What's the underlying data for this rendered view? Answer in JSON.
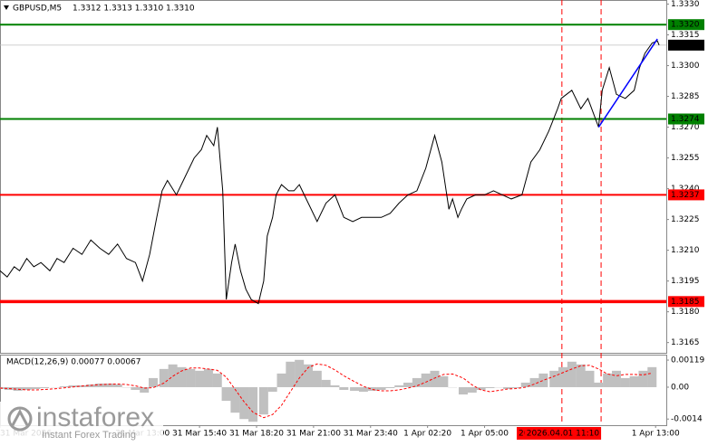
{
  "chart_data": {
    "type": "line",
    "title": "GBPUSD,M5",
    "subtitle": "1.3312 1.3313 1.3310 1.3310",
    "color": "#000000",
    "x": [
      380,
      400,
      420,
      435,
      455,
      475,
      495,
      520,
      540,
      560,
      585,
      610,
      635,
      660,
      685,
      710,
      735,
      760,
      780,
      800,
      820,
      835,
      850,
      875,
      900,
      925,
      945,
      960,
      980,
      990,
      1005,
      1015,
      1030,
      1040,
      1055,
      1070,
      1085,
      1105,
      1120,
      1130,
      1145,
      1155,
      1170,
      1190,
      1205,
      1220,
      1245,
      1270,
      1295,
      1320,
      1345,
      1370,
      1395,
      1420,
      1450,
      1475,
      1500,
      1525,
      1550,
      1575,
      1600,
      1620,
      1640,
      1650,
      1665,
      1675,
      1690,
      1715,
      1740,
      1765,
      1790,
      1815,
      1845,
      1870,
      1895,
      1920,
      1945,
      1955,
      1970,
      1985,
      2010,
      2030,
      2045,
      2060,
      2070,
      2090,
      2110,
      2135,
      2160,
      2175,
      2190,
      2210,
      2225,
      2230
    ],
    "values": [
      1.32,
      1.3197,
      1.3202,
      1.32,
      1.3206,
      1.3202,
      1.3204,
      1.32,
      1.3206,
      1.3204,
      1.3211,
      1.3208,
      1.3215,
      1.3211,
      1.3208,
      1.3213,
      1.3206,
      1.3204,
      1.3195,
      1.3208,
      1.3226,
      1.3239,
      1.3244,
      1.3237,
      1.3246,
      1.3255,
      1.3259,
      1.3266,
      1.3261,
      1.327,
      1.3239,
      1.3186,
      1.3204,
      1.3213,
      1.32,
      1.3191,
      1.3186,
      1.3184,
      1.3195,
      1.3217,
      1.3226,
      1.3237,
      1.3242,
      1.3239,
      1.3239,
      1.3242,
      1.3233,
      1.3224,
      1.3233,
      1.3237,
      1.3226,
      1.3224,
      1.3226,
      1.3226,
      1.3226,
      1.3228,
      1.3233,
      1.3237,
      1.3239,
      1.325,
      1.3266,
      1.3253,
      1.323,
      1.3235,
      1.3226,
      1.323,
      1.3235,
      1.3237,
      1.3237,
      1.3239,
      1.3237,
      1.3235,
      1.3237,
      1.3253,
      1.3259,
      1.3268,
      1.3279,
      1.3284,
      1.3286,
      1.3288,
      1.3279,
      1.3284,
      1.3277,
      1.327,
      1.3288,
      1.3299,
      1.3286,
      1.3284,
      1.3288,
      1.3299,
      1.3306,
      1.3311,
      1.3312,
      1.331
    ],
    "xlim": [
      380,
      2250
    ],
    "ylim": [
      1.316,
      1.3332
    ],
    "yticks": [
      {
        "value": 1.333,
        "label": "1.3330"
      },
      1.3315,
      {
        "value": 1.33,
        "label": "1.3300"
      },
      1.3285,
      {
        "value": 1.327,
        "label": "1.3270"
      },
      1.3255,
      {
        "value": 1.324,
        "label": "1.3240"
      },
      1.3225,
      {
        "value": 1.321,
        "label": "1.3210"
      },
      1.3195,
      {
        "value": 1.318,
        "label": "1.3180"
      },
      1.3165
    ],
    "xticks": [
      {
        "value": 380,
        "label": "31 Mar 2026"
      },
      {
        "value": 780,
        "label": "31 Mar 13:00"
      },
      {
        "value": 940,
        "label": "31 Mar 15:40"
      },
      {
        "value": 1100,
        "label": "31 Mar 18:20"
      },
      {
        "value": 1260,
        "label": "31 Mar 21:00"
      },
      {
        "value": 1420,
        "label": "31 Mar 23:40"
      },
      {
        "value": 1580,
        "label": "1 Apr 02:20"
      },
      {
        "value": 1740,
        "label": "1 Apr 05:00"
      },
      {
        "value": 2220,
        "label": "1 Apr 13:00"
      }
    ],
    "levels": [
      {
        "value": 1.332,
        "label": "1.3320",
        "color": "#008000"
      },
      {
        "value": 1.3274,
        "color": "#008000"
      },
      {
        "value": 1.3237,
        "color": "#ff0000"
      },
      {
        "value": 1.3185,
        "color": "#ff0000"
      }
    ],
    "current_price": {
      "value": 1.331,
      "label": "1.3310"
    },
    "trendline": {
      "x": [
        2060,
        2225
      ],
      "values": [
        1.327,
        1.3313
      ],
      "color": "#0000ff"
    },
    "vlines": [
      {
        "value": 1957,
        "label": "2026.04.0"
      },
      {
        "value": 2067,
        "label": "2026.04.01 11:10"
      }
    ],
    "vline_color": "#ff0000",
    "macd": {
      "title": "MACD(12,26,9) 0.00077 0.00067",
      "ylim": [
        -0.00167,
        0.00143
      ],
      "yticks": [
        0.00119,
        {
          "value": 0,
          "label": "0.00"
        },
        -0.0014
      ],
      "hist_color": "#c0c0c0",
      "signal_color": "#ff0000",
      "x": [
        380,
        405,
        430,
        455,
        480,
        505,
        535,
        560,
        585,
        610,
        635,
        660,
        685,
        710,
        735,
        760,
        785,
        810,
        840,
        865,
        890,
        915,
        940,
        965,
        990,
        1015,
        1040,
        1065,
        1090,
        1120,
        1145,
        1170,
        1195,
        1220,
        1245,
        1270,
        1295,
        1320,
        1345,
        1375,
        1400,
        1425,
        1450,
        1475,
        1500,
        1525,
        1550,
        1575,
        1600,
        1625,
        1650,
        1680,
        1705,
        1730,
        1755,
        1780,
        1805,
        1830,
        1855,
        1880,
        1905,
        1935,
        1960,
        1985,
        2010,
        2035,
        2060,
        2085,
        2110,
        2135,
        2160,
        2185,
        2210
      ],
      "histogram": [
        -8e-05,
        -0.00012,
        -0.00016,
        -0.00012,
        -8e-05,
        -4e-05,
        0,
        4e-05,
        8e-05,
        8e-05,
        0.00012,
        0.00016,
        0.00016,
        0.00012,
        0,
        -0.00012,
        -0.00024,
        0.0004,
        0.0008,
        0.001,
        0.00088,
        0.0008,
        0.00072,
        0.0008,
        0.0006,
        -0.0006,
        -0.00112,
        -0.0014,
        -0.00152,
        -0.0012,
        -0.0002,
        0.0006,
        0.00112,
        0.0012,
        0.001,
        0.00072,
        0.00032,
        8e-05,
        -0.00012,
        -0.00016,
        -0.0002,
        -0.00016,
        -0.00012,
        -4e-05,
        8e-05,
        0.0002,
        0.0004,
        0.0006,
        0.00072,
        0.00048,
        0,
        -0.00032,
        -0.00024,
        -0.00012,
        -4e-05,
        0,
        -8e-05,
        -4e-05,
        0.0002,
        0.0004,
        0.0006,
        0.00072,
        0.00088,
        0.00112,
        0.001,
        0.00072,
        0.0002,
        0.0006,
        0.00072,
        0.0004,
        0.00048,
        0.00072,
        0.00088
      ],
      "signal": [
        -4e-05,
        -6e-05,
        -9e-05,
        -0.00012,
        -0.00012,
        -0.0001,
        -7e-05,
        -3e-05,
        1e-05,
        5e-05,
        8e-05,
        0.00011,
        0.00013,
        0.00014,
        0.00012,
        6e-05,
        -4e-05,
        -2e-05,
        0.00018,
        0.00048,
        0.00072,
        0.00084,
        0.00084,
        0.0008,
        0.00074,
        0.00044,
        -0.0001,
        -0.00064,
        -0.0011,
        -0.00134,
        -0.0012,
        -0.0008,
        -0.0002,
        0.0004,
        0.00086,
        0.00102,
        0.00096,
        0.00076,
        0.0005,
        0.00024,
        4e-05,
        -0.0001,
        -0.00016,
        -0.00016,
        -0.00012,
        -4e-05,
        6e-05,
        0.00022,
        0.0004,
        0.00056,
        0.00058,
        0.0004,
        0.0001,
        -0.00012,
        -0.0002,
        -0.00014,
        -8e-05,
        -6e-05,
        0,
        0.00014,
        0.0003,
        0.00048,
        0.00064,
        0.0008,
        0.00094,
        0.00096,
        0.0008,
        0.00058,
        0.0005,
        0.00056,
        0.00056,
        0.00054,
        0.00062
      ]
    }
  },
  "watermark": {
    "brand": "instaforex",
    "tagline": "Instant Forex Trading"
  }
}
